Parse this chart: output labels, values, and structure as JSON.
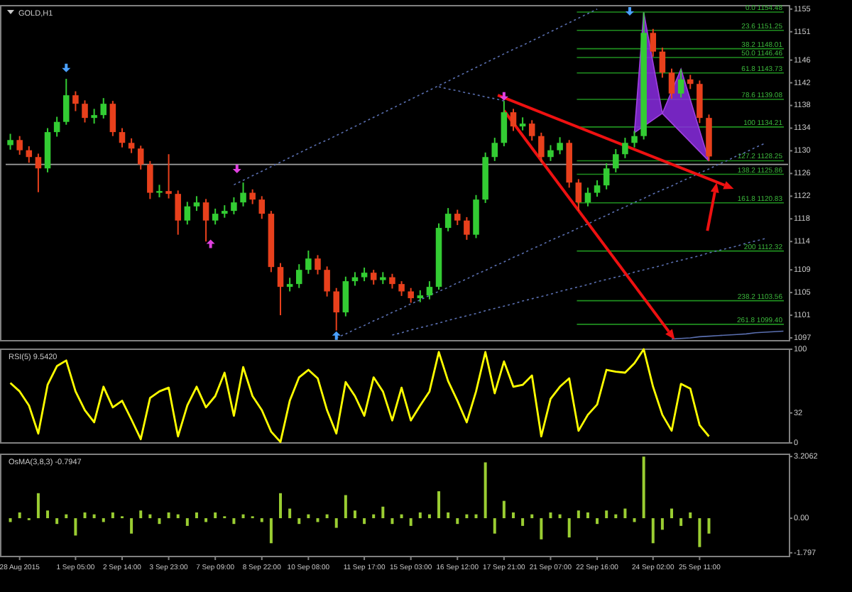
{
  "chart_data": [
    {
      "type": "candlestick",
      "title": "GOLD,H1",
      "tick_labels": "y",
      "categories": [
        null,
        null,
        null,
        null,
        null,
        null,
        null,
        null,
        null,
        null,
        null,
        null,
        null,
        null,
        null,
        null,
        null,
        null,
        null,
        null,
        null,
        null,
        null,
        null,
        null,
        null,
        null,
        null,
        null,
        null,
        null,
        null,
        null,
        null,
        null,
        null,
        null,
        null,
        null,
        null,
        null,
        null,
        null,
        null,
        null,
        null,
        null,
        null,
        null,
        null,
        null,
        null,
        null,
        null,
        null,
        null,
        null,
        null,
        null,
        null,
        null,
        null,
        null,
        null,
        null,
        null,
        null,
        null,
        null,
        null,
        null,
        null,
        null,
        null,
        null,
        null,
        null,
        null,
        null,
        null,
        null,
        null,
        null,
        null
      ],
      "series": [
        {
          "type": "line",
          "color": "#5a6fb0",
          "line_style": "dotted",
          "values": [
            null,
            null,
            null,
            null,
            null,
            null,
            null,
            null,
            null,
            null,
            null,
            null,
            null,
            null,
            null,
            null,
            null,
            null,
            null,
            null,
            null,
            null,
            null,
            null,
            1124.0,
            1124.8,
            1125.6,
            1126.4,
            1127.2,
            1128.0,
            1128.8,
            1129.6,
            1130.4,
            1131.2,
            1131.9,
            1132.7,
            1133.5,
            1134.3,
            1135.1,
            1135.9,
            1136.7,
            1137.5,
            1138.3,
            1139.1,
            1139.9,
            1140.7,
            1141.5,
            1142.3,
            1143.1,
            1143.9,
            1144.7,
            1145.5,
            1146.3,
            1147.1,
            1147.9,
            1148.6,
            1149.4,
            1150.2,
            1151.0,
            1151.8,
            1152.6,
            1153.4,
            1154.2,
            1155.0,
            null,
            null,
            null,
            null,
            null,
            null,
            null,
            null,
            null,
            null,
            null,
            null,
            null,
            null,
            null,
            null,
            null,
            null,
            null,
            null
          ]
        },
        {
          "type": "line",
          "color": "#5a6fb0",
          "line_style": "dotted",
          "values": [
            null,
            null,
            null,
            null,
            null,
            null,
            null,
            null,
            null,
            null,
            null,
            null,
            null,
            null,
            null,
            null,
            null,
            null,
            null,
            null,
            null,
            null,
            null,
            null,
            null,
            null,
            null,
            null,
            null,
            null,
            null,
            null,
            null,
            null,
            null,
            null,
            null,
            null,
            null,
            null,
            null,
            null,
            null,
            null,
            null,
            null,
            1141.3,
            1140.9,
            1140.6,
            1140.2,
            1139.9,
            1139.5,
            1139.2,
            1138.8,
            null,
            null,
            null,
            null,
            null,
            null,
            null,
            null,
            null,
            null,
            null,
            null,
            null,
            null,
            null,
            null,
            null,
            null,
            null,
            null,
            null,
            null,
            null,
            null,
            null,
            null,
            null,
            null,
            null,
            null
          ]
        },
        {
          "type": "line",
          "color": "#5a6fb0",
          "line_style": "dotted",
          "values": [
            null,
            null,
            null,
            null,
            null,
            null,
            null,
            null,
            null,
            null,
            null,
            null,
            null,
            null,
            null,
            null,
            null,
            null,
            null,
            null,
            null,
            null,
            null,
            null,
            null,
            null,
            null,
            null,
            null,
            null,
            null,
            null,
            null,
            null,
            null,
            1097.0,
            1097.7,
            1098.5,
            1099.2,
            1100.0,
            1100.7,
            1101.5,
            1102.2,
            1103.0,
            1103.7,
            1104.5,
            1105.2,
            1105.9,
            1106.7,
            1107.4,
            1108.2,
            1108.9,
            1109.7,
            1110.4,
            1111.2,
            1111.9,
            1112.7,
            1113.4,
            1114.2,
            1114.9,
            1115.6,
            1116.4,
            1117.1,
            1117.9,
            1118.6,
            1119.4,
            1120.1,
            1120.9,
            1121.6,
            1122.4,
            1123.1,
            1123.8,
            1124.6,
            1125.3,
            1126.1,
            1126.8,
            1127.6,
            1128.3,
            1129.1,
            1129.8,
            1130.6,
            1131.3,
            null,
            null
          ]
        },
        {
          "type": "line",
          "color": "#5a6fb0",
          "line_style": "dotted",
          "values": [
            null,
            null,
            null,
            null,
            null,
            null,
            null,
            null,
            null,
            null,
            null,
            null,
            null,
            null,
            null,
            null,
            null,
            null,
            null,
            null,
            null,
            null,
            null,
            null,
            null,
            null,
            null,
            null,
            null,
            null,
            null,
            null,
            null,
            null,
            null,
            null,
            null,
            null,
            null,
            null,
            null,
            1097.5,
            1097.9,
            1098.4,
            1098.8,
            1099.2,
            1099.6,
            1100.1,
            1100.5,
            1100.9,
            1101.3,
            1101.8,
            1102.2,
            1102.6,
            1103.0,
            1103.5,
            1103.9,
            1104.3,
            1104.7,
            1105.2,
            1105.6,
            1106.0,
            1106.4,
            1106.9,
            1107.3,
            1107.7,
            1108.1,
            1108.6,
            1109.0,
            1109.4,
            1109.8,
            1110.3,
            1110.7,
            1111.1,
            1111.5,
            1112.0,
            1112.4,
            1112.8,
            1113.2,
            1113.7,
            1114.1,
            1114.5,
            null,
            null
          ]
        },
        {
          "type": "line",
          "color": "#5a6fb0",
          "line_style": "solid",
          "values": [
            null,
            null,
            null,
            null,
            null,
            null,
            null,
            null,
            null,
            null,
            null,
            null,
            null,
            null,
            null,
            null,
            null,
            null,
            null,
            null,
            null,
            null,
            null,
            null,
            null,
            null,
            null,
            null,
            null,
            null,
            null,
            null,
            null,
            null,
            null,
            null,
            null,
            null,
            null,
            null,
            null,
            null,
            null,
            null,
            null,
            null,
            null,
            null,
            null,
            null,
            null,
            null,
            null,
            null,
            null,
            null,
            null,
            null,
            null,
            null,
            null,
            null,
            null,
            null,
            null,
            null,
            null,
            null,
            null,
            null,
            null,
            1096.8,
            1096.9,
            1097.0,
            1097.2,
            1097.3,
            1097.4,
            1097.5,
            1097.6,
            1097.7,
            1097.9,
            1098.0,
            1098.1,
            1098.2
          ]
        }
      ],
      "ohlc": [
        [
          1131.0,
          1133.0,
          1130.2,
          1131.9
        ],
        [
          1131.9,
          1132.6,
          1129.3,
          1130.1
        ],
        [
          1130.1,
          1130.8,
          1127.9,
          1128.9
        ],
        [
          1128.9,
          1129.5,
          1122.7,
          1126.9
        ],
        [
          1126.9,
          1134.0,
          1126.2,
          1133.3
        ],
        [
          1133.3,
          1136.0,
          1132.5,
          1135.1
        ],
        [
          1135.1,
          1142.7,
          1134.6,
          1139.8
        ],
        [
          1139.8,
          1140.5,
          1137.0,
          1138.3
        ],
        [
          1138.3,
          1138.9,
          1135.0,
          1135.8
        ],
        [
          1135.8,
          1137.4,
          1134.8,
          1136.3
        ],
        [
          1136.3,
          1139.3,
          1135.7,
          1138.3
        ],
        [
          1138.3,
          1138.8,
          1132.6,
          1133.3
        ],
        [
          1133.3,
          1134.0,
          1130.6,
          1131.4
        ],
        [
          1131.4,
          1132.2,
          1129.6,
          1130.4
        ],
        [
          1130.4,
          1130.9,
          1126.7,
          1127.6
        ],
        [
          1127.6,
          1128.2,
          1121.5,
          1122.6
        ],
        [
          1122.6,
          1124.0,
          1121.8,
          1122.9
        ],
        [
          1122.9,
          1129.4,
          1121.6,
          1122.4
        ],
        [
          1122.4,
          1123.0,
          1115.2,
          1117.7
        ],
        [
          1117.7,
          1121.0,
          1117.0,
          1120.2
        ],
        [
          1120.2,
          1122.0,
          1119.4,
          1120.9
        ],
        [
          1120.9,
          1121.5,
          1114.0,
          1117.7
        ],
        [
          1117.7,
          1119.8,
          1117.0,
          1118.9
        ],
        [
          1118.9,
          1120.4,
          1118.2,
          1119.4
        ],
        [
          1119.4,
          1121.8,
          1118.8,
          1120.9
        ],
        [
          1120.9,
          1124.4,
          1120.2,
          1122.6
        ],
        [
          1122.6,
          1123.2,
          1120.6,
          1121.4
        ],
        [
          1121.4,
          1122.0,
          1118.0,
          1118.9
        ],
        [
          1118.9,
          1119.4,
          1108.6,
          1109.5
        ],
        [
          1109.5,
          1110.2,
          1101.0,
          1106.0
        ],
        [
          1106.0,
          1107.6,
          1105.2,
          1106.5
        ],
        [
          1106.5,
          1110.0,
          1105.8,
          1109.0
        ],
        [
          1109.0,
          1112.4,
          1108.3,
          1111.0
        ],
        [
          1111.0,
          1111.6,
          1108.2,
          1109.0
        ],
        [
          1109.0,
          1109.6,
          1104.3,
          1105.2
        ],
        [
          1105.2,
          1105.8,
          1098.3,
          1101.5
        ],
        [
          1101.5,
          1107.8,
          1100.8,
          1107.0
        ],
        [
          1107.0,
          1108.6,
          1106.2,
          1107.7
        ],
        [
          1107.7,
          1109.4,
          1107.0,
          1108.5
        ],
        [
          1108.5,
          1109.0,
          1106.4,
          1107.2
        ],
        [
          1107.2,
          1108.6,
          1106.5,
          1107.7
        ],
        [
          1107.7,
          1108.3,
          1105.7,
          1106.5
        ],
        [
          1106.5,
          1107.0,
          1104.4,
          1105.2
        ],
        [
          1105.2,
          1105.8,
          1103.2,
          1104.0
        ],
        [
          1104.0,
          1105.4,
          1103.3,
          1104.5
        ],
        [
          1104.5,
          1107.0,
          1103.8,
          1106.0
        ],
        [
          1106.0,
          1117.2,
          1105.5,
          1116.4
        ],
        [
          1116.4,
          1119.9,
          1115.8,
          1118.9
        ],
        [
          1118.9,
          1119.6,
          1116.9,
          1117.7
        ],
        [
          1117.7,
          1118.3,
          1114.3,
          1115.2
        ],
        [
          1115.2,
          1122.2,
          1114.6,
          1121.4
        ],
        [
          1121.4,
          1129.7,
          1120.8,
          1128.9
        ],
        [
          1128.9,
          1132.3,
          1128.2,
          1131.4
        ],
        [
          1131.4,
          1138.8,
          1130.8,
          1136.8
        ],
        [
          1136.8,
          1137.4,
          1133.5,
          1134.3
        ],
        [
          1134.3,
          1135.9,
          1133.6,
          1134.8
        ],
        [
          1134.8,
          1135.4,
          1131.8,
          1132.6
        ],
        [
          1132.6,
          1133.2,
          1128.0,
          1128.9
        ],
        [
          1128.9,
          1131.0,
          1128.2,
          1130.1
        ],
        [
          1130.1,
          1132.4,
          1129.4,
          1131.4
        ],
        [
          1131.4,
          1131.9,
          1123.5,
          1124.4
        ],
        [
          1124.4,
          1125.0,
          1119.4,
          1120.9
        ],
        [
          1120.9,
          1123.5,
          1120.2,
          1122.6
        ],
        [
          1122.6,
          1124.8,
          1121.9,
          1123.9
        ],
        [
          1123.9,
          1127.8,
          1123.2,
          1126.9
        ],
        [
          1126.9,
          1130.3,
          1126.2,
          1129.4
        ],
        [
          1129.4,
          1132.3,
          1128.7,
          1131.4
        ],
        [
          1131.4,
          1133.5,
          1130.6,
          1132.6
        ],
        [
          1132.6,
          1154.4,
          1132.0,
          1150.8
        ],
        [
          1150.8,
          1151.5,
          1146.6,
          1147.5
        ],
        [
          1147.5,
          1148.2,
          1142.9,
          1143.8
        ],
        [
          1143.8,
          1144.5,
          1139.2,
          1140.1
        ],
        [
          1140.1,
          1144.4,
          1139.4,
          1142.6
        ],
        [
          1142.6,
          1143.4,
          1140.9,
          1141.8
        ],
        [
          1141.8,
          1142.4,
          1134.9,
          1135.8
        ],
        [
          1135.8,
          1136.4,
          1128.2,
          1129.0
        ],
        null,
        null,
        null,
        null,
        null,
        null,
        null,
        null
      ],
      "colors": [
        "#33cc33",
        "#e8401c",
        "#e8401c",
        "#e8401c",
        "#33cc33",
        "#33cc33",
        "#33cc33",
        "#e8401c",
        "#e8401c",
        "#33cc33",
        "#33cc33",
        "#e8401c",
        "#e8401c",
        "#e8401c",
        "#e8401c",
        "#e8401c",
        "#33cc33",
        "#e8401c",
        "#e8401c",
        "#33cc33",
        "#33cc33",
        "#e8401c",
        "#33cc33",
        "#33cc33",
        "#33cc33",
        "#33cc33",
        "#e8401c",
        "#e8401c",
        "#e8401c",
        "#e8401c",
        "#33cc33",
        "#33cc33",
        "#33cc33",
        "#e8401c",
        "#e8401c",
        "#e8401c",
        "#33cc33",
        "#33cc33",
        "#33cc33",
        "#e8401c",
        "#33cc33",
        "#e8401c",
        "#e8401c",
        "#e8401c",
        "#33cc33",
        "#33cc33",
        "#33cc33",
        "#33cc33",
        "#e8401c",
        "#e8401c",
        "#33cc33",
        "#33cc33",
        "#33cc33",
        "#33cc33",
        "#e8401c",
        "#33cc33",
        "#e8401c",
        "#e8401c",
        "#33cc33",
        "#33cc33",
        "#e8401c",
        "#e8401c",
        "#33cc33",
        "#33cc33",
        "#33cc33",
        "#33cc33",
        "#33cc33",
        "#33cc33",
        "#33cc33",
        "#e8401c",
        "#e8401c",
        "#e8401c",
        "#33cc33",
        "#e8401c",
        "#e8401c",
        "#e8401c",
        null,
        null,
        null,
        null,
        null,
        null,
        null,
        null
      ],
      "ylim": [
        1096.5,
        1155.6
      ],
      "yticks": [
        1155,
        1151,
        1146,
        1142,
        1138,
        1134,
        1130,
        1126,
        1122,
        1118,
        1114,
        1109,
        1105,
        1101,
        1097
      ],
      "ref_lines": [
        {
          "axis": "y",
          "value": 1127.6,
          "label": null,
          "color": "#a0a0a0",
          "line_style": "solid"
        },
        {
          "axis": "y",
          "value": 1154.48,
          "label": "0.0 1154.48",
          "color": "#1f8f1f",
          "line_style": "solid"
        },
        {
          "axis": "y",
          "value": 1151.25,
          "label": "23.6 1151.25",
          "color": "#1f8f1f",
          "line_style": "solid"
        },
        {
          "axis": "y",
          "value": 1148.01,
          "label": "38.2 1148.01",
          "color": "#1f8f1f",
          "line_style": "solid"
        },
        {
          "axis": "y",
          "value": 1146.46,
          "label": "50.0 1146.46",
          "color": "#1f8f1f",
          "line_style": "solid"
        },
        {
          "axis": "y",
          "value": 1143.73,
          "label": "61.8 1143.73",
          "color": "#1f8f1f",
          "line_style": "solid"
        },
        {
          "axis": "y",
          "value": 1139.08,
          "label": "78.6 1139.08",
          "color": "#1f8f1f",
          "line_style": "solid"
        },
        {
          "axis": "y",
          "value": 1134.21,
          "label": "100 1134.21",
          "color": "#1f8f1f",
          "line_style": "solid"
        },
        {
          "axis": "y",
          "value": 1128.25,
          "label": "127.2 1128.25",
          "color": "#1f8f1f",
          "line_style": "solid"
        },
        {
          "axis": "y",
          "value": 1125.86,
          "label": "138.2 1125.86",
          "color": "#1f8f1f",
          "line_style": "solid"
        },
        {
          "axis": "y",
          "value": 1120.83,
          "label": "161.8 1120.83",
          "color": "#1f8f1f",
          "line_style": "solid"
        },
        {
          "axis": "y",
          "value": 1112.32,
          "label": "200 1112.32",
          "color": "#1f8f1f",
          "line_style": "solid"
        },
        {
          "axis": "y",
          "value": 1103.56,
          "label": "238.2 1103.56",
          "color": "#1f8f1f",
          "line_style": "solid"
        },
        {
          "axis": "y",
          "value": 1099.4,
          "label": "261.8 1099.40",
          "color": "#1f8f1f",
          "line_style": "solid"
        }
      ]
    },
    {
      "type": "line",
      "title": "RSI(5) 9.5420",
      "tick_labels": "y",
      "categories": [
        null,
        null,
        null,
        null,
        null,
        null,
        null,
        null,
        null,
        null,
        null,
        null,
        null,
        null,
        null,
        null,
        null,
        null,
        null,
        null,
        null,
        null,
        null,
        null,
        null,
        null,
        null,
        null,
        null,
        null,
        null,
        null,
        null,
        null,
        null,
        null,
        null,
        null,
        null,
        null,
        null,
        null,
        null,
        null,
        null,
        null,
        null,
        null,
        null,
        null,
        null,
        null,
        null,
        null,
        null,
        null,
        null,
        null,
        null,
        null,
        null,
        null,
        null,
        null,
        null,
        null,
        null,
        null,
        null,
        null,
        null,
        null,
        null,
        null,
        null,
        null,
        null,
        null,
        null,
        null,
        null,
        null,
        null,
        null
      ],
      "series": [
        {
          "color": "#ffff00",
          "values": [
            64,
            55,
            40,
            10,
            62,
            82,
            88,
            55,
            35,
            22,
            60,
            38,
            45,
            25,
            4,
            48,
            55,
            59,
            7,
            40,
            60,
            38,
            50,
            75,
            29,
            81,
            50,
            35,
            12,
            1,
            45,
            70,
            78,
            69,
            35,
            10,
            65,
            50,
            29,
            70,
            55,
            24,
            59,
            24,
            40,
            55,
            97,
            66,
            45,
            22,
            55,
            97,
            53,
            87,
            60,
            62,
            72,
            7,
            47,
            60,
            69,
            13,
            30,
            41,
            78,
            76,
            75,
            85,
            100,
            60,
            30,
            13,
            63,
            58,
            19,
            7,
            null,
            null,
            null,
            null,
            null,
            null,
            null,
            null
          ]
        }
      ],
      "ylim": [
        0,
        100
      ],
      "yticks": [
        100,
        32,
        0
      ],
      "line_style": "solid",
      "marker": "none"
    },
    {
      "type": "bar",
      "title": "OsMA(3,8,3) -0.7947",
      "color": "#9acd32",
      "categories": [
        null,
        "28 Aug 2015",
        null,
        null,
        null,
        null,
        null,
        "1 Sep 05:00",
        null,
        null,
        null,
        null,
        "2 Sep 14:00",
        null,
        null,
        null,
        null,
        "3 Sep 23:00",
        null,
        null,
        null,
        null,
        "7 Sep 09:00",
        null,
        null,
        null,
        null,
        "8 Sep 22:00",
        null,
        null,
        null,
        null,
        "10 Sep 08:00",
        null,
        null,
        null,
        null,
        null,
        "11 Sep 17:00",
        null,
        null,
        null,
        null,
        "15 Sep 03:00",
        null,
        null,
        null,
        null,
        "16 Sep 12:00",
        null,
        null,
        null,
        null,
        "17 Sep 21:00",
        null,
        null,
        null,
        null,
        "21 Sep 07:00",
        null,
        null,
        null,
        null,
        "22 Sep 16:00",
        null,
        null,
        null,
        null,
        null,
        "24 Sep 02:00",
        null,
        null,
        null,
        null,
        "25 Sep 11:00",
        null,
        null,
        null,
        null,
        null,
        null,
        null,
        null,
        null
      ],
      "values": [
        -0.2,
        0.3,
        -0.1,
        1.3,
        0.4,
        -0.3,
        0.2,
        -0.9,
        0.3,
        0.2,
        -0.2,
        0.3,
        0.1,
        -0.8,
        0.4,
        0.2,
        -0.3,
        0.3,
        0.2,
        -0.4,
        0.3,
        -0.2,
        0.3,
        0.1,
        -0.3,
        0.2,
        0.1,
        -0.2,
        -1.3,
        1.3,
        0.5,
        -0.3,
        0.2,
        -0.2,
        0.2,
        -0.5,
        1.2,
        0.4,
        -0.3,
        0.2,
        0.6,
        -0.3,
        0.2,
        -0.4,
        0.3,
        0.2,
        1.4,
        0.3,
        -0.3,
        0.2,
        0.2,
        2.9,
        -0.8,
        0.9,
        0.3,
        -0.4,
        0.2,
        -1.1,
        0.3,
        0.2,
        -1.0,
        0.4,
        0.3,
        -0.3,
        0.4,
        0.2,
        0.5,
        -0.2,
        3.2,
        -1.3,
        -0.6,
        0.5,
        -0.4,
        0.3,
        -1.5,
        -0.8,
        null,
        null,
        null,
        null,
        null,
        null,
        null,
        null
      ],
      "ylim": [
        -1.99,
        3.32
      ],
      "yticks": [
        {
          "value": 3.2062,
          "label": "3.2062"
        },
        {
          "value": 0,
          "label": "0.00"
        },
        {
          "value": -1.797,
          "label": "-1.797"
        }
      ]
    }
  ]
}
